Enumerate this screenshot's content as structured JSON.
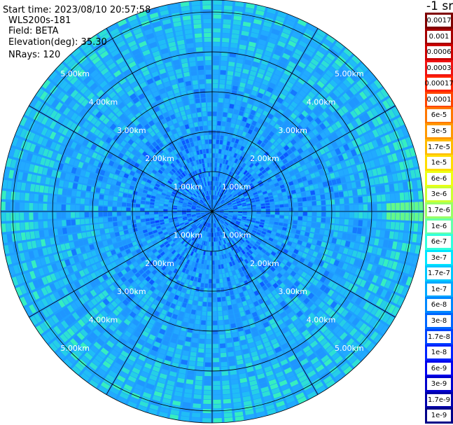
{
  "info": {
    "start": "Start time: 2023/08/10 20:57:58",
    "device": "WLS200s-181",
    "field": "Field: BETA",
    "elevation": "Elevation(deg): 35.30",
    "rays": "NRays: 120"
  },
  "colorbar": {
    "unit": "-1 sr",
    "labels": [
      "0.0017",
      "0.001",
      "0.0006",
      "0.0003",
      "0.00017",
      "0.0001",
      "6e-5",
      "3e-5",
      "1.7e-5",
      "1e-5",
      "6e-6",
      "3e-6",
      "1.7e-6",
      "1e-6",
      "6e-7",
      "3e-7",
      "1.7e-7",
      "1e-7",
      "6e-8",
      "3e-8",
      "1.7e-8",
      "1e-8",
      "6e-9",
      "3e-9",
      "1.7e-9",
      "1e-9"
    ],
    "colors": [
      "#7f0000",
      "#a50000",
      "#cc0000",
      "#ee1111",
      "#ff2200",
      "#ff4400",
      "#ff7700",
      "#ff9900",
      "#ffbb00",
      "#ffdd00",
      "#eeff11",
      "#ccff33",
      "#99ff66",
      "#66ffaa",
      "#33ffdd",
      "#00e6ff",
      "#00c8ff",
      "#00a8ff",
      "#0088ff",
      "#0066ff",
      "#0044ff",
      "#0022ff",
      "#0000ee",
      "#0000cc",
      "#0000aa",
      "#000088"
    ]
  },
  "range_rings": {
    "labels": [
      "1.00km",
      "2.00km",
      "3.00km",
      "4.00km",
      "5.00km"
    ]
  },
  "scan": {
    "n_rays": 120,
    "max_range_km": 5.3
  }
}
